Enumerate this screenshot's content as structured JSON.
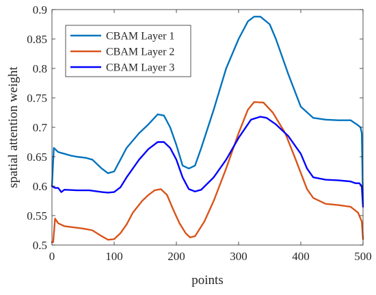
{
  "chart_data": {
    "type": "line",
    "title": "",
    "xlabel": "points",
    "ylabel": "spatial attention weight",
    "xlim": [
      0,
      500
    ],
    "ylim": [
      0.5,
      0.9
    ],
    "xticks": [
      0,
      100,
      200,
      300,
      400,
      500
    ],
    "xtick_labels": [
      "0",
      "100",
      "200",
      "300",
      "400",
      "500"
    ],
    "yticks": [
      0.5,
      0.55,
      0.6,
      0.65,
      0.7,
      0.75,
      0.8,
      0.85,
      0.9
    ],
    "ytick_labels": [
      "0.5",
      "0.55",
      "0.6",
      "0.65",
      "0.7",
      "0.75",
      "0.8",
      "0.85",
      "0.9"
    ],
    "grid": false,
    "legend_position": "top-left",
    "series": [
      {
        "name": "CBAM Layer 1",
        "color": "#0072BD",
        "points": [
          [
            0,
            0.6
          ],
          [
            3,
            0.665
          ],
          [
            10,
            0.658
          ],
          [
            20,
            0.655
          ],
          [
            30,
            0.652
          ],
          [
            40,
            0.65
          ],
          [
            55,
            0.648
          ],
          [
            65,
            0.645
          ],
          [
            80,
            0.63
          ],
          [
            90,
            0.622
          ],
          [
            100,
            0.625
          ],
          [
            110,
            0.645
          ],
          [
            120,
            0.665
          ],
          [
            140,
            0.69
          ],
          [
            155,
            0.705
          ],
          [
            170,
            0.722
          ],
          [
            180,
            0.72
          ],
          [
            190,
            0.7
          ],
          [
            200,
            0.67
          ],
          [
            210,
            0.635
          ],
          [
            220,
            0.63
          ],
          [
            230,
            0.635
          ],
          [
            240,
            0.665
          ],
          [
            260,
            0.73
          ],
          [
            280,
            0.8
          ],
          [
            300,
            0.85
          ],
          [
            315,
            0.88
          ],
          [
            325,
            0.888
          ],
          [
            335,
            0.888
          ],
          [
            350,
            0.875
          ],
          [
            360,
            0.85
          ],
          [
            380,
            0.79
          ],
          [
            400,
            0.735
          ],
          [
            420,
            0.716
          ],
          [
            440,
            0.713
          ],
          [
            460,
            0.712
          ],
          [
            480,
            0.712
          ],
          [
            490,
            0.705
          ],
          [
            496,
            0.7
          ],
          [
            498,
            0.69
          ],
          [
            500,
            0.57
          ]
        ]
      },
      {
        "name": "CBAM Layer 2",
        "color": "#D95319",
        "points": [
          [
            0,
            0.505
          ],
          [
            2,
            0.505
          ],
          [
            5,
            0.545
          ],
          [
            10,
            0.537
          ],
          [
            20,
            0.532
          ],
          [
            35,
            0.53
          ],
          [
            50,
            0.528
          ],
          [
            65,
            0.525
          ],
          [
            80,
            0.515
          ],
          [
            90,
            0.509
          ],
          [
            100,
            0.51
          ],
          [
            110,
            0.52
          ],
          [
            120,
            0.535
          ],
          [
            130,
            0.555
          ],
          [
            145,
            0.575
          ],
          [
            155,
            0.585
          ],
          [
            165,
            0.593
          ],
          [
            175,
            0.595
          ],
          [
            185,
            0.585
          ],
          [
            195,
            0.56
          ],
          [
            205,
            0.537
          ],
          [
            215,
            0.52
          ],
          [
            222,
            0.513
          ],
          [
            230,
            0.515
          ],
          [
            245,
            0.54
          ],
          [
            260,
            0.575
          ],
          [
            280,
            0.63
          ],
          [
            300,
            0.69
          ],
          [
            315,
            0.73
          ],
          [
            325,
            0.743
          ],
          [
            340,
            0.742
          ],
          [
            355,
            0.725
          ],
          [
            375,
            0.69
          ],
          [
            390,
            0.65
          ],
          [
            410,
            0.595
          ],
          [
            420,
            0.58
          ],
          [
            440,
            0.57
          ],
          [
            460,
            0.568
          ],
          [
            480,
            0.565
          ],
          [
            492,
            0.555
          ],
          [
            498,
            0.54
          ],
          [
            500,
            0.51
          ]
        ]
      },
      {
        "name": "CBAM Layer 3",
        "color": "#0000FF",
        "points": [
          [
            0,
            0.6
          ],
          [
            5,
            0.597
          ],
          [
            10,
            0.597
          ],
          [
            15,
            0.59
          ],
          [
            20,
            0.594
          ],
          [
            40,
            0.593
          ],
          [
            60,
            0.593
          ],
          [
            80,
            0.59
          ],
          [
            90,
            0.589
          ],
          [
            100,
            0.59
          ],
          [
            110,
            0.598
          ],
          [
            120,
            0.615
          ],
          [
            140,
            0.645
          ],
          [
            155,
            0.663
          ],
          [
            170,
            0.675
          ],
          [
            180,
            0.675
          ],
          [
            190,
            0.665
          ],
          [
            200,
            0.645
          ],
          [
            210,
            0.615
          ],
          [
            220,
            0.595
          ],
          [
            230,
            0.591
          ],
          [
            240,
            0.594
          ],
          [
            260,
            0.615
          ],
          [
            280,
            0.645
          ],
          [
            300,
            0.682
          ],
          [
            320,
            0.713
          ],
          [
            335,
            0.718
          ],
          [
            345,
            0.716
          ],
          [
            360,
            0.705
          ],
          [
            380,
            0.685
          ],
          [
            400,
            0.655
          ],
          [
            410,
            0.63
          ],
          [
            420,
            0.615
          ],
          [
            440,
            0.611
          ],
          [
            460,
            0.61
          ],
          [
            480,
            0.608
          ],
          [
            488,
            0.605
          ],
          [
            494,
            0.605
          ],
          [
            498,
            0.6
          ],
          [
            500,
            0.565
          ]
        ]
      }
    ]
  }
}
